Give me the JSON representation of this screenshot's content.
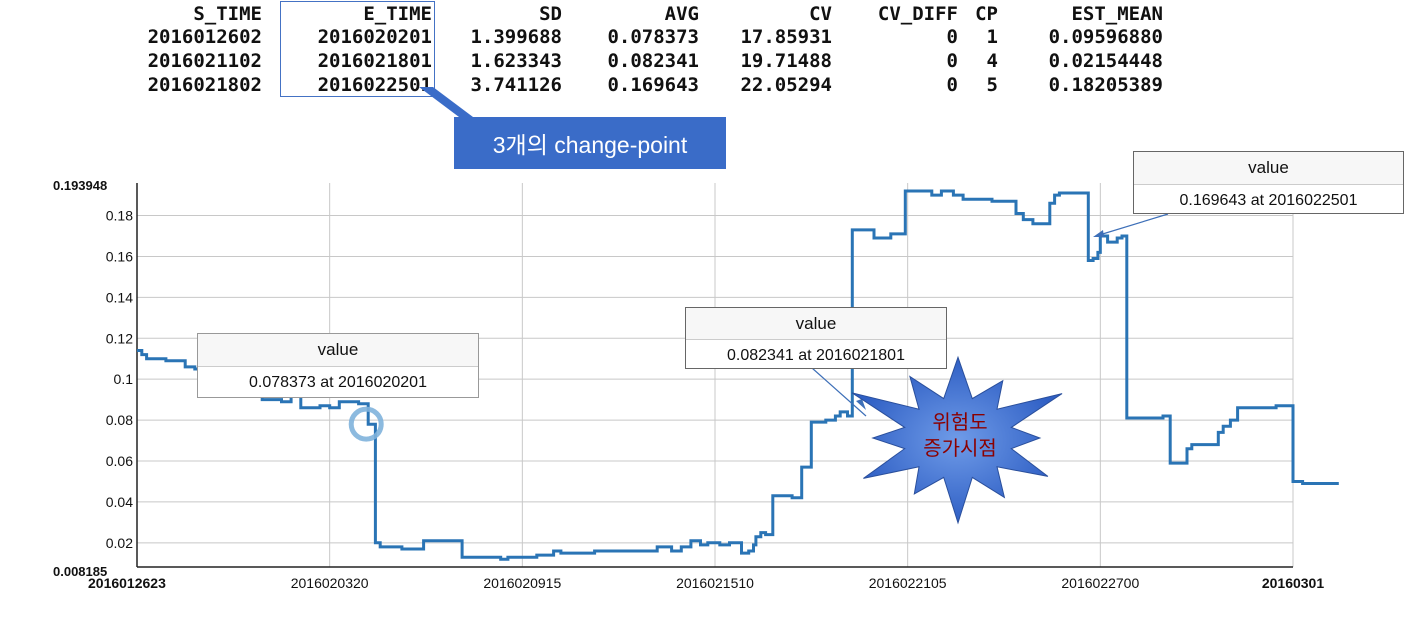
{
  "table": {
    "headers": [
      "S_TIME",
      "E_TIME",
      "SD",
      "AVG",
      "CV",
      "CV_DIFF",
      "CP",
      "EST_MEAN"
    ],
    "rows": [
      [
        "2016012602",
        "2016020201",
        "1.399688",
        "0.078373",
        "17.85931",
        "0",
        "1",
        "0.09596880"
      ],
      [
        "2016021102",
        "2016021801",
        "1.623343",
        "0.082341",
        "19.71488",
        "0",
        "4",
        "0.02154448"
      ],
      [
        "2016021802",
        "2016022501",
        "3.741126",
        "0.169643",
        "22.05294",
        "0",
        "5",
        "0.18205389"
      ]
    ]
  },
  "callout_label": "3개의 change-point",
  "burst_label_line1": "위험도",
  "burst_label_line2": "증가시점",
  "tooltips": [
    {
      "title": "value",
      "text": "0.078373 at 2016020201"
    },
    {
      "title": "value",
      "text": "0.082341 at 2016021801"
    },
    {
      "title": "value",
      "text": "0.169643 at 2016022501"
    }
  ],
  "colors": {
    "line": "#2a74b5",
    "grid": "#c8c8c8",
    "burst": "#2f5fc4",
    "callout": "#3a6cc8"
  },
  "chart_data": {
    "type": "line",
    "ylim": [
      0.008185,
      0.193948
    ],
    "y_ticks": [
      0.02,
      0.04,
      0.06,
      0.08,
      0.1,
      0.12,
      0.14,
      0.16,
      0.18
    ],
    "y_min_label": "0.008185",
    "y_max_label": "0.193948",
    "x_tick_labels": [
      "2016012623",
      "2016020320",
      "2016020915",
      "2016021510",
      "2016022105",
      "2016022700",
      "20160301"
    ],
    "grid": true,
    "x_range": [
      0,
      24
    ],
    "x_tick_positions": [
      0,
      4,
      8,
      12,
      16,
      20,
      24
    ],
    "series": [
      {
        "step_points": [
          [
            0.0,
            0.114
          ],
          [
            0.1,
            0.112
          ],
          [
            0.2,
            0.11
          ],
          [
            0.6,
            0.109
          ],
          [
            1.0,
            0.106
          ],
          [
            1.2,
            0.105
          ],
          [
            1.4,
            0.103
          ],
          [
            1.6,
            0.1
          ],
          [
            2.0,
            0.098
          ],
          [
            2.2,
            0.096
          ],
          [
            2.4,
            0.093
          ],
          [
            2.6,
            0.09
          ],
          [
            3.0,
            0.089
          ],
          [
            3.2,
            0.092
          ],
          [
            3.4,
            0.086
          ],
          [
            3.8,
            0.087
          ],
          [
            4.0,
            0.086
          ],
          [
            4.2,
            0.089
          ],
          [
            4.6,
            0.088
          ],
          [
            4.8,
            0.078
          ],
          [
            4.95,
            0.02
          ],
          [
            5.05,
            0.018
          ],
          [
            5.5,
            0.017
          ],
          [
            5.95,
            0.021
          ],
          [
            6.75,
            0.013
          ],
          [
            7.25,
            0.013
          ],
          [
            7.55,
            0.012
          ],
          [
            7.7,
            0.013
          ],
          [
            8.0,
            0.013
          ],
          [
            8.3,
            0.014
          ],
          [
            8.5,
            0.014
          ],
          [
            8.65,
            0.016
          ],
          [
            8.8,
            0.015
          ],
          [
            9.1,
            0.015
          ],
          [
            9.5,
            0.016
          ],
          [
            10.0,
            0.016
          ],
          [
            10.5,
            0.016
          ],
          [
            10.8,
            0.018
          ],
          [
            11.1,
            0.016
          ],
          [
            11.3,
            0.018
          ],
          [
            11.5,
            0.021
          ],
          [
            11.7,
            0.019
          ],
          [
            11.85,
            0.02
          ],
          [
            12.1,
            0.019
          ],
          [
            12.3,
            0.02
          ],
          [
            12.55,
            0.015
          ],
          [
            12.7,
            0.016
          ],
          [
            12.8,
            0.019
          ],
          [
            12.85,
            0.023
          ],
          [
            12.95,
            0.025
          ],
          [
            13.05,
            0.024
          ],
          [
            13.2,
            0.043
          ],
          [
            13.6,
            0.042
          ],
          [
            13.8,
            0.057
          ],
          [
            14.0,
            0.079
          ],
          [
            14.3,
            0.08
          ],
          [
            14.5,
            0.082
          ],
          [
            14.6,
            0.084
          ],
          [
            14.75,
            0.082
          ],
          [
            14.85,
            0.173
          ],
          [
            15.3,
            0.169
          ],
          [
            15.65,
            0.171
          ],
          [
            15.95,
            0.192
          ],
          [
            16.0,
            0.192
          ],
          [
            16.5,
            0.19
          ],
          [
            16.7,
            0.192
          ],
          [
            16.95,
            0.19
          ],
          [
            17.15,
            0.188
          ],
          [
            17.45,
            0.188
          ],
          [
            17.75,
            0.187
          ],
          [
            18.15,
            0.187
          ],
          [
            18.25,
            0.181
          ],
          [
            18.4,
            0.178
          ],
          [
            18.6,
            0.176
          ],
          [
            18.95,
            0.186
          ],
          [
            19.05,
            0.19
          ],
          [
            19.15,
            0.191
          ],
          [
            19.6,
            0.191
          ],
          [
            19.75,
            0.158
          ],
          [
            19.85,
            0.159
          ],
          [
            19.95,
            0.162
          ],
          [
            20.0,
            0.17
          ],
          [
            20.15,
            0.167
          ],
          [
            20.35,
            0.169
          ],
          [
            20.45,
            0.17
          ],
          [
            20.55,
            0.081
          ],
          [
            21.3,
            0.082
          ],
          [
            21.45,
            0.059
          ],
          [
            21.8,
            0.066
          ],
          [
            21.9,
            0.068
          ],
          [
            22.3,
            0.068
          ],
          [
            22.45,
            0.074
          ],
          [
            22.55,
            0.077
          ],
          [
            22.7,
            0.08
          ],
          [
            22.85,
            0.086
          ],
          [
            23.45,
            0.086
          ],
          [
            23.65,
            0.087
          ],
          [
            23.95,
            0.087
          ],
          [
            24.0,
            0.05
          ],
          [
            24.1,
            0.05
          ],
          [
            24.2,
            0.049
          ],
          [
            24.95,
            0.049
          ]
        ]
      }
    ]
  }
}
